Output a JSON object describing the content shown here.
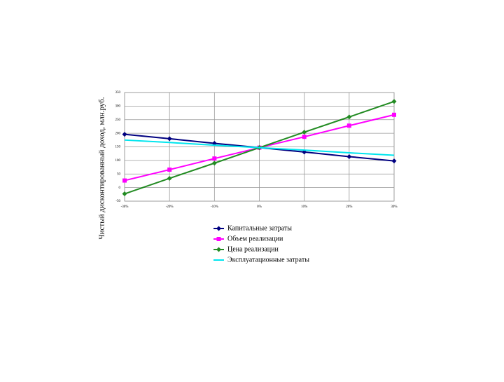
{
  "chart_data": {
    "type": "line",
    "y_label": "Чистый дисконтированный доход, млн.руб.",
    "categories": [
      "-30%",
      "-20%",
      "-10%",
      "0%",
      "10%",
      "20%",
      "30%"
    ],
    "ylim": [
      -50,
      350
    ],
    "yticks": [
      -50,
      0,
      50,
      100,
      150,
      200,
      250,
      300,
      350
    ],
    "grid": true,
    "series": [
      {
        "name": "Капитальные затраты",
        "color": "#000080",
        "marker": "diamond",
        "values": [
          196,
          180,
          163,
          147,
          131,
          114,
          98
        ]
      },
      {
        "name": "Объем реализации",
        "color": "#ff00ff",
        "marker": "square",
        "values": [
          26,
          66,
          107,
          147,
          187,
          228,
          268
        ]
      },
      {
        "name": "Цена реализации",
        "color": "#228b22",
        "marker": "diamond",
        "values": [
          -23,
          34,
          90,
          147,
          204,
          260,
          317
        ]
      },
      {
        "name": "Эксплуатационные затраты",
        "color": "#00e5ee",
        "marker": "none",
        "values": [
          175,
          166,
          156,
          147,
          138,
          128,
          119
        ]
      }
    ]
  }
}
